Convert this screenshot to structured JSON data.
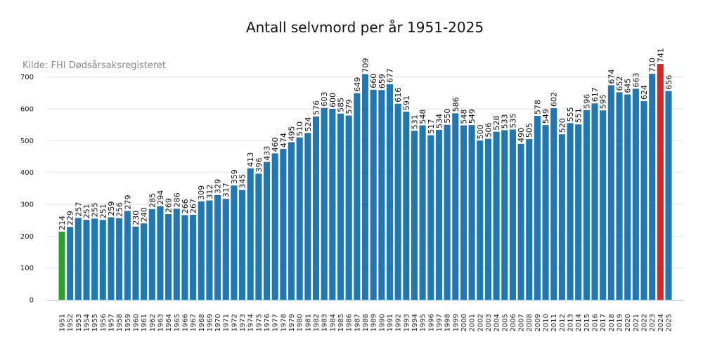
{
  "chart_data": {
    "type": "bar",
    "title": "Antall selvmord per år 1951-2025",
    "source_note": "Kilde: FHI Dødsårsaksregisteret",
    "xlabel": "",
    "ylabel": "",
    "ylim": [
      0,
      750
    ],
    "yticks": [
      0,
      100,
      200,
      300,
      400,
      500,
      600,
      700
    ],
    "grid": true,
    "colors": {
      "default": "#1f77b4",
      "first": "#2ca02c",
      "highlight": "#d62728"
    },
    "highlight_categories": [
      "2024"
    ],
    "first_category": "1951",
    "categories": [
      "1951",
      "1952",
      "1953",
      "1954",
      "1955",
      "1956",
      "1957",
      "1958",
      "1959",
      "1960",
      "1961",
      "1962",
      "1963",
      "1964",
      "1965",
      "1966",
      "1967",
      "1968",
      "1969",
      "1970",
      "1971",
      "1972",
      "1973",
      "1974",
      "1975",
      "1976",
      "1977",
      "1978",
      "1979",
      "1980",
      "1981",
      "1982",
      "1983",
      "1984",
      "1985",
      "1986",
      "1987",
      "1988",
      "1989",
      "1990",
      "1991",
      "1992",
      "1993",
      "1994",
      "1995",
      "1996",
      "1997",
      "1998",
      "1999",
      "2000",
      "2001",
      "2002",
      "2003",
      "2004",
      "2005",
      "2006",
      "2007",
      "2008",
      "2009",
      "2010",
      "2011",
      "2012",
      "2013",
      "2014",
      "2015",
      "2016",
      "2017",
      "2018",
      "2019",
      "2020",
      "2021",
      "2022",
      "2023",
      "2024",
      "2025"
    ],
    "values": [
      214,
      229,
      257,
      251,
      255,
      251,
      259,
      256,
      279,
      230,
      240,
      285,
      294,
      269,
      286,
      266,
      267,
      309,
      312,
      329,
      317,
      359,
      345,
      413,
      396,
      433,
      460,
      474,
      495,
      510,
      524,
      576,
      603,
      600,
      585,
      579,
      649,
      709,
      660,
      659,
      677,
      616,
      591,
      531,
      548,
      517,
      534,
      550,
      586,
      548,
      549,
      500,
      506,
      528,
      533,
      535,
      490,
      505,
      578,
      549,
      602,
      520,
      555,
      551,
      596,
      617,
      595,
      674,
      652,
      645,
      663,
      624,
      710,
      741,
      656
    ]
  }
}
